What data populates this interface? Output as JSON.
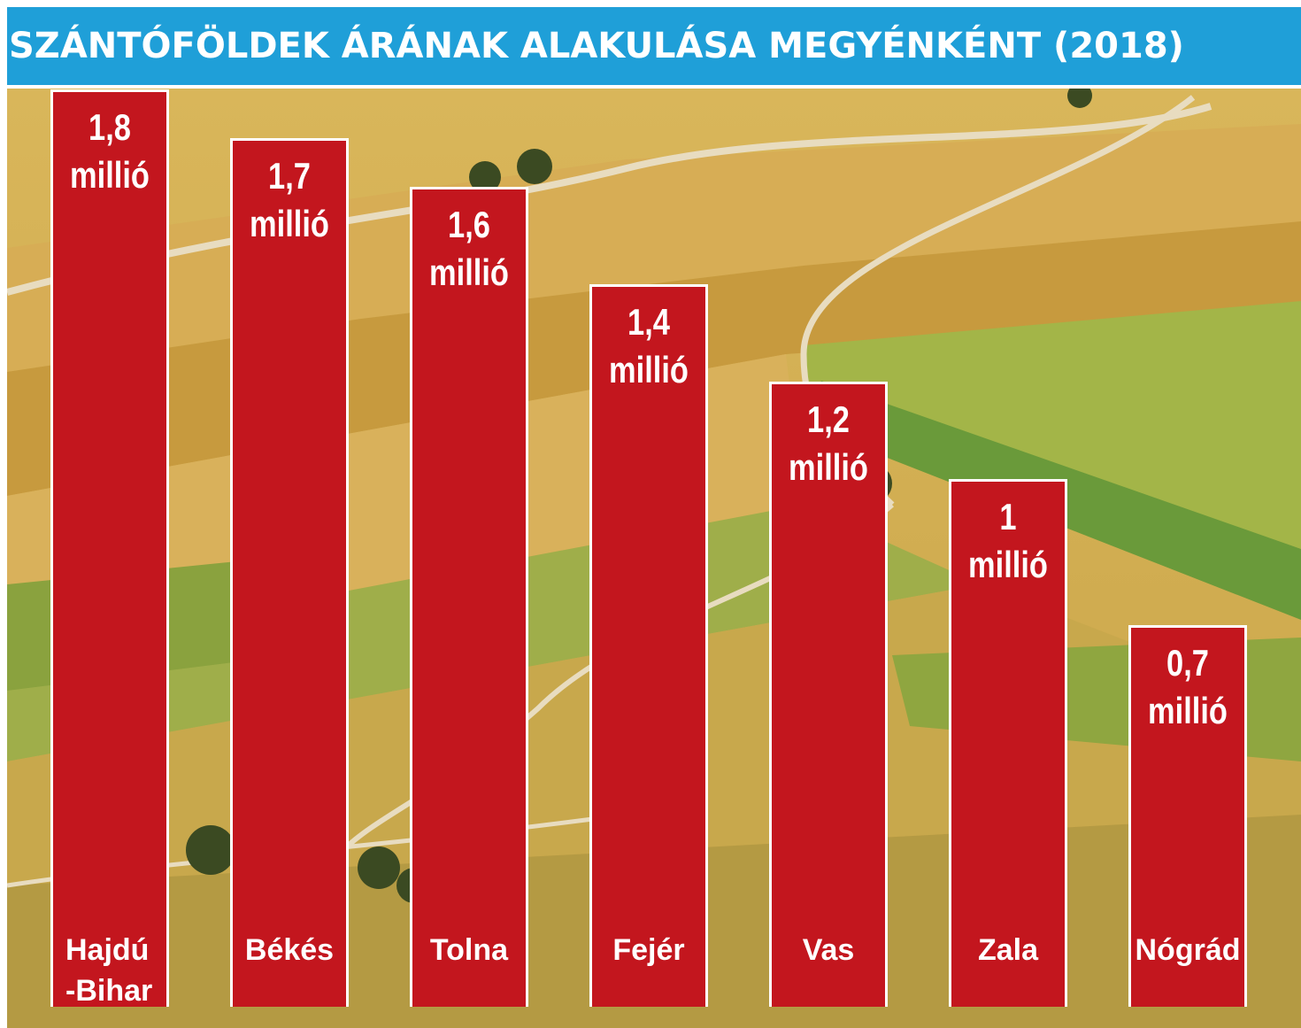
{
  "colors": {
    "title_bg": "#1f9fd8",
    "bar": "#c3161e",
    "text": "#ffffff"
  },
  "chart_data": {
    "type": "bar",
    "title": "SZÁNTÓFÖLDEK ÁRÁNAK ALAKULÁSA MEGYÉNKÉNT (2018)",
    "categories": [
      "Hajdú\n-Bihar",
      "Békés",
      "Tolna",
      "Fejér",
      "Vas",
      "Zala",
      "Nógrád"
    ],
    "values": [
      1.8,
      1.7,
      1.6,
      1.4,
      1.2,
      1.0,
      0.7
    ],
    "value_labels": [
      [
        "1,8",
        "millió"
      ],
      [
        "1,7",
        "millió"
      ],
      [
        "1,6",
        "millió"
      ],
      [
        "1,4",
        "millió"
      ],
      [
        "1,2",
        "millió"
      ],
      [
        "1",
        "millió"
      ],
      [
        "0,7",
        "millió"
      ]
    ],
    "xlabel": "",
    "ylabel": "",
    "ylim": [
      0,
      1.8
    ],
    "grid": false,
    "legend": "none"
  }
}
